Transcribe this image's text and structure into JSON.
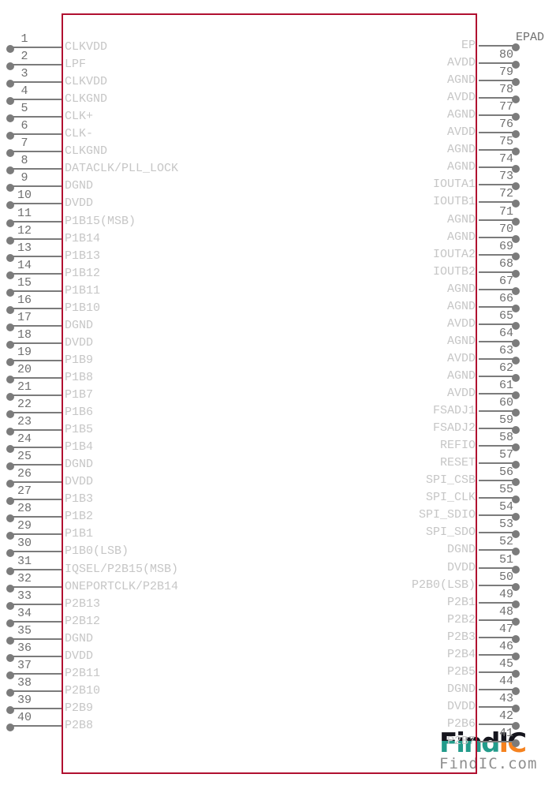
{
  "diagram": {
    "type": "ic-pinout-schematic",
    "colors": {
      "outline": "#b01030",
      "pin_line": "#7b7b7b",
      "pin_number": "#6f6f6f",
      "pin_label": "#c6c6c6",
      "watermark_teal": "#239b8b",
      "watermark_orange": "#f5821f",
      "watermark_dark": "#15151d",
      "watermark_gray": "#8f8f8f"
    },
    "pins": {
      "left": [
        {
          "num": "1",
          "label": "CLKVDD"
        },
        {
          "num": "2",
          "label": "LPF"
        },
        {
          "num": "3",
          "label": "CLKVDD"
        },
        {
          "num": "4",
          "label": "CLKGND"
        },
        {
          "num": "5",
          "label": "CLK+"
        },
        {
          "num": "6",
          "label": "CLK-"
        },
        {
          "num": "7",
          "label": "CLKGND"
        },
        {
          "num": "8",
          "label": "DATACLK/PLL_LOCK"
        },
        {
          "num": "9",
          "label": "DGND"
        },
        {
          "num": "10",
          "label": "DVDD"
        },
        {
          "num": "11",
          "label": "P1B15(MSB)"
        },
        {
          "num": "12",
          "label": "P1B14"
        },
        {
          "num": "13",
          "label": "P1B13"
        },
        {
          "num": "14",
          "label": "P1B12"
        },
        {
          "num": "15",
          "label": "P1B11"
        },
        {
          "num": "16",
          "label": "P1B10"
        },
        {
          "num": "17",
          "label": "DGND"
        },
        {
          "num": "18",
          "label": "DVDD"
        },
        {
          "num": "19",
          "label": "P1B9"
        },
        {
          "num": "20",
          "label": "P1B8"
        },
        {
          "num": "21",
          "label": "P1B7"
        },
        {
          "num": "22",
          "label": "P1B6"
        },
        {
          "num": "23",
          "label": "P1B5"
        },
        {
          "num": "24",
          "label": "P1B4"
        },
        {
          "num": "25",
          "label": "DGND"
        },
        {
          "num": "26",
          "label": "DVDD"
        },
        {
          "num": "27",
          "label": "P1B3"
        },
        {
          "num": "28",
          "label": "P1B2"
        },
        {
          "num": "29",
          "label": "P1B1"
        },
        {
          "num": "30",
          "label": "P1B0(LSB)"
        },
        {
          "num": "31",
          "label": "IQSEL/P2B15(MSB)"
        },
        {
          "num": "32",
          "label": "ONEPORTCLK/P2B14"
        },
        {
          "num": "33",
          "label": "P2B13"
        },
        {
          "num": "34",
          "label": "P2B12"
        },
        {
          "num": "35",
          "label": "DGND"
        },
        {
          "num": "36",
          "label": "DVDD"
        },
        {
          "num": "37",
          "label": "P2B11"
        },
        {
          "num": "38",
          "label": "P2B10"
        },
        {
          "num": "39",
          "label": "P2B9"
        },
        {
          "num": "40",
          "label": "P2B8"
        }
      ],
      "right": [
        {
          "num": "EPAD",
          "label": "EP"
        },
        {
          "num": "80",
          "label": "AVDD"
        },
        {
          "num": "79",
          "label": "AGND"
        },
        {
          "num": "78",
          "label": "AVDD"
        },
        {
          "num": "77",
          "label": "AGND"
        },
        {
          "num": "76",
          "label": "AVDD"
        },
        {
          "num": "75",
          "label": "AGND"
        },
        {
          "num": "74",
          "label": "AGND"
        },
        {
          "num": "73",
          "label": "IOUTA1"
        },
        {
          "num": "72",
          "label": "IOUTB1"
        },
        {
          "num": "71",
          "label": "AGND"
        },
        {
          "num": "70",
          "label": "AGND"
        },
        {
          "num": "69",
          "label": "IOUTA2"
        },
        {
          "num": "68",
          "label": "IOUTB2"
        },
        {
          "num": "67",
          "label": "AGND"
        },
        {
          "num": "66",
          "label": "AGND"
        },
        {
          "num": "65",
          "label": "AVDD"
        },
        {
          "num": "64",
          "label": "AGND"
        },
        {
          "num": "63",
          "label": "AVDD"
        },
        {
          "num": "62",
          "label": "AGND"
        },
        {
          "num": "61",
          "label": "AVDD"
        },
        {
          "num": "60",
          "label": "FSADJ1"
        },
        {
          "num": "59",
          "label": "FSADJ2"
        },
        {
          "num": "58",
          "label": "REFIO"
        },
        {
          "num": "57",
          "label": "RESET"
        },
        {
          "num": "56",
          "label": "SPI_CSB"
        },
        {
          "num": "55",
          "label": "SPI_CLK"
        },
        {
          "num": "54",
          "label": "SPI_SDIO"
        },
        {
          "num": "53",
          "label": "SPI_SDO"
        },
        {
          "num": "52",
          "label": "DGND"
        },
        {
          "num": "51",
          "label": "DVDD"
        },
        {
          "num": "50",
          "label": "P2B0(LSB)"
        },
        {
          "num": "49",
          "label": "P2B1"
        },
        {
          "num": "48",
          "label": "P2B2"
        },
        {
          "num": "47",
          "label": "P2B3"
        },
        {
          "num": "46",
          "label": "P2B4"
        },
        {
          "num": "45",
          "label": "P2B5"
        },
        {
          "num": "44",
          "label": "DGND"
        },
        {
          "num": "43",
          "label": "DVDD"
        },
        {
          "num": "42",
          "label": "P2B6"
        },
        {
          "num": "41",
          "label": "P2B7"
        }
      ]
    },
    "watermark": {
      "logo_find": "Find",
      "logo_ic": "IC",
      "tagline": "FindIC.com"
    }
  }
}
